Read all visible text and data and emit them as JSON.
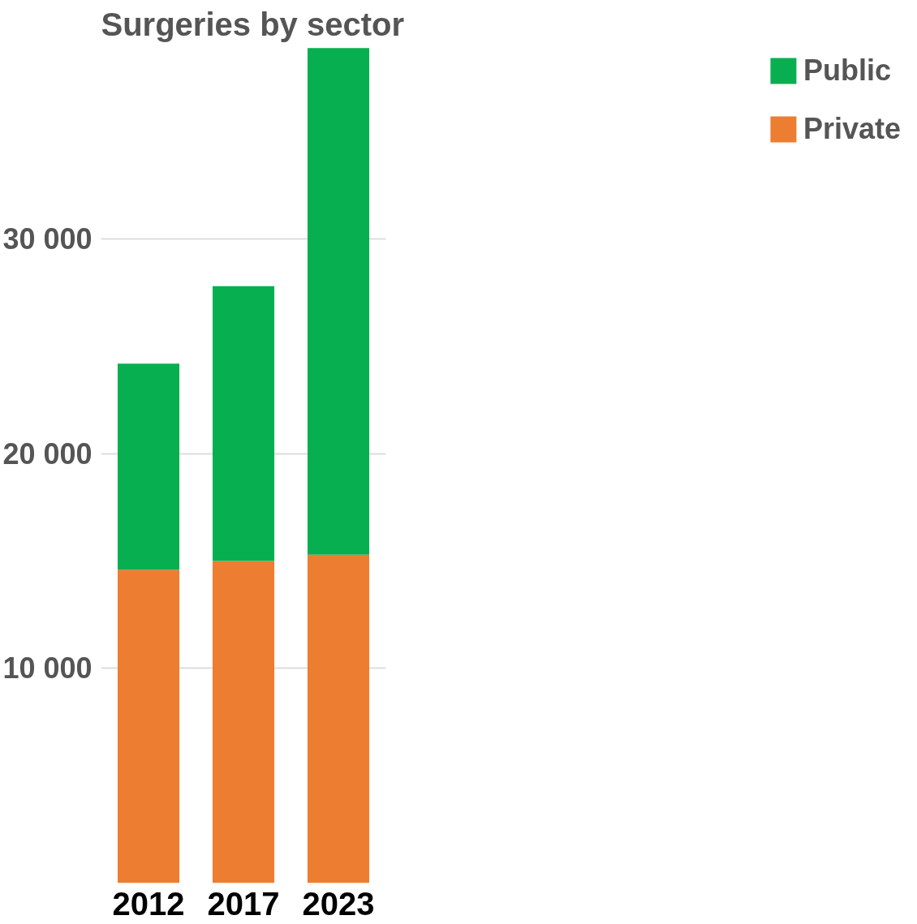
{
  "chart_data": {
    "type": "bar",
    "title": "Surgeries by sector",
    "categories": [
      "2012",
      "2017",
      "2023"
    ],
    "stacked": true,
    "series": [
      {
        "name": "Private",
        "color": "#ed7d31",
        "values": [
          14600,
          15000,
          15300
        ]
      },
      {
        "name": "Public",
        "color": "#08af50",
        "values": [
          9600,
          12800,
          23600
        ]
      }
    ],
    "ylim": [
      0,
      39000
    ],
    "yticks": [
      {
        "value": 10000,
        "label": "10 000"
      },
      {
        "value": 20000,
        "label": "20 000"
      },
      {
        "value": 30000,
        "label": "30 000"
      }
    ],
    "grid": "y",
    "legend": "right"
  }
}
